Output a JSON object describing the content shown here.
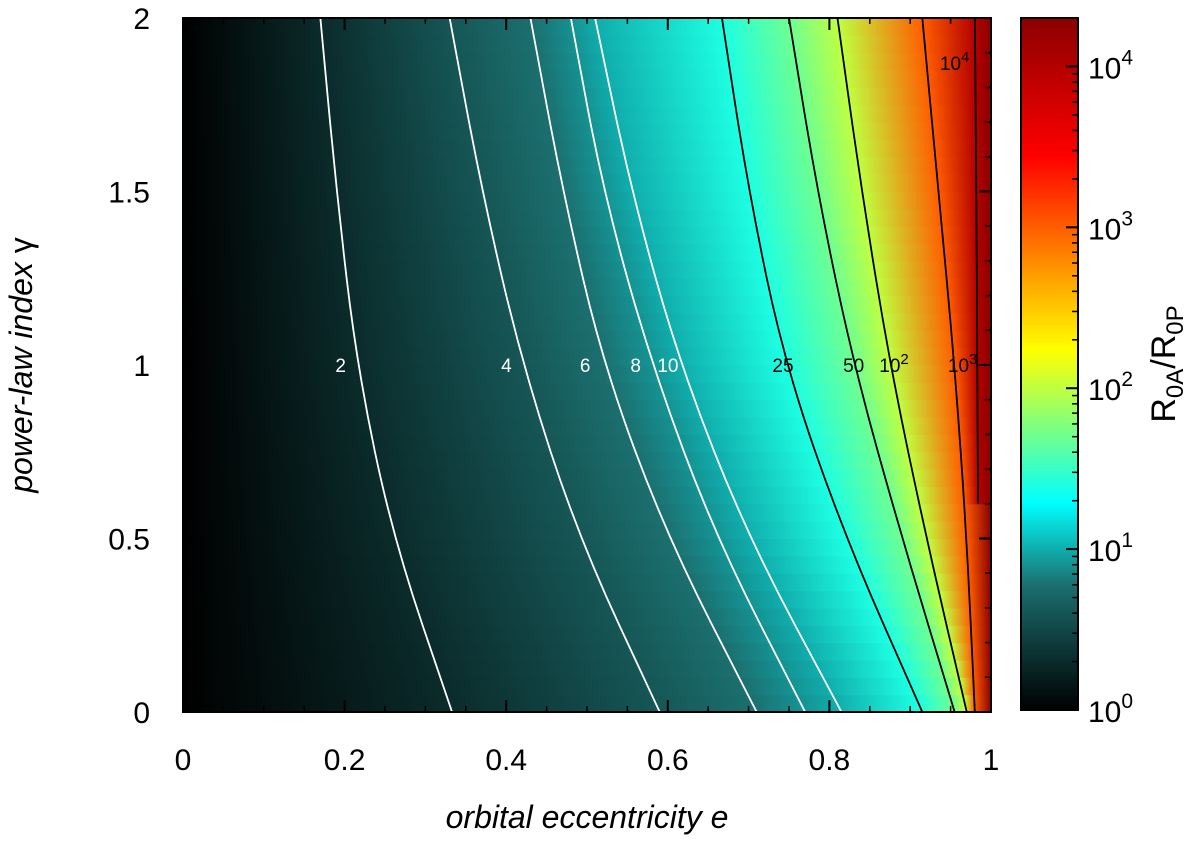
{
  "chart_data": {
    "type": "heatmap",
    "xlabel": "orbital eccentricity e",
    "ylabel": "power-law index γ",
    "xlim": [
      0,
      1
    ],
    "ylim": [
      0,
      2
    ],
    "x_ticks": [
      "0",
      "0.2",
      "0.4",
      "0.6",
      "0.8",
      "1"
    ],
    "y_ticks": [
      "0",
      "0.5",
      "1",
      "1.5",
      "2"
    ],
    "colorbar": {
      "label": "R0A/R0P",
      "scale": "log",
      "range": [
        1,
        20000
      ],
      "ticks": [
        {
          "base": "10",
          "exp": "0"
        },
        {
          "base": "10",
          "exp": "1"
        },
        {
          "base": "10",
          "exp": "2"
        },
        {
          "base": "10",
          "exp": "3"
        },
        {
          "base": "10",
          "exp": "4"
        }
      ],
      "colormap": [
        "#000000",
        "#1c6e6e",
        "#00ffff",
        "#ffff00",
        "#ff0000",
        "#8b0000"
      ]
    },
    "contours": [
      {
        "value": 2,
        "label": "2",
        "color": "#ffffff",
        "points": [
          [
            0.17,
            2.0
          ],
          [
            0.19,
            1.5
          ],
          [
            0.215,
            1.0
          ],
          [
            0.26,
            0.5
          ],
          [
            0.333,
            0.0
          ]
        ]
      },
      {
        "value": 4,
        "label": "4",
        "color": "#ffffff",
        "points": [
          [
            0.33,
            2.0
          ],
          [
            0.37,
            1.5
          ],
          [
            0.42,
            1.0
          ],
          [
            0.49,
            0.5
          ],
          [
            0.59,
            0.0
          ]
        ]
      },
      {
        "value": 6,
        "label": "6",
        "color": "#ffffff",
        "points": [
          [
            0.43,
            2.0
          ],
          [
            0.47,
            1.5
          ],
          [
            0.52,
            1.0
          ],
          [
            0.6,
            0.5
          ],
          [
            0.71,
            0.0
          ]
        ]
      },
      {
        "value": 8,
        "label": "8",
        "color": "#ffffff",
        "points": [
          [
            0.48,
            2.0
          ],
          [
            0.52,
            1.5
          ],
          [
            0.58,
            1.0
          ],
          [
            0.66,
            0.5
          ],
          [
            0.77,
            0.0
          ]
        ]
      },
      {
        "value": 10,
        "label": "10",
        "color": "#ffffff",
        "points": [
          [
            0.51,
            2.0
          ],
          [
            0.555,
            1.5
          ],
          [
            0.615,
            1.0
          ],
          [
            0.7,
            0.5
          ],
          [
            0.815,
            0.0
          ]
        ]
      },
      {
        "value": 25,
        "label": "25",
        "color": "#000000",
        "points": [
          [
            0.667,
            2.0
          ],
          [
            0.7,
            1.5
          ],
          [
            0.745,
            1.0
          ],
          [
            0.82,
            0.5
          ],
          [
            0.915,
            0.0
          ]
        ]
      },
      {
        "value": 50,
        "label": "50",
        "color": "#000000",
        "points": [
          [
            0.75,
            2.0
          ],
          [
            0.785,
            1.5
          ],
          [
            0.83,
            1.0
          ],
          [
            0.89,
            0.5
          ],
          [
            0.955,
            0.0
          ]
        ]
      },
      {
        "value": 100,
        "label": "10",
        "label_exp": "2",
        "color": "#000000",
        "points": [
          [
            0.81,
            2.0
          ],
          [
            0.84,
            1.5
          ],
          [
            0.875,
            1.0
          ],
          [
            0.92,
            0.5
          ],
          [
            0.97,
            0.0
          ]
        ]
      },
      {
        "value": 1000,
        "label": "10",
        "label_exp": "3",
        "color": "#000000",
        "points": [
          [
            0.915,
            2.0
          ],
          [
            0.935,
            1.5
          ],
          [
            0.955,
            1.0
          ],
          [
            0.97,
            0.5
          ],
          [
            0.98,
            0.0
          ]
        ]
      },
      {
        "value": 10000,
        "label": "10",
        "label_exp": "4",
        "color": "#000000",
        "points": [
          [
            0.98,
            2.0
          ],
          [
            0.982,
            1.5
          ],
          [
            0.983,
            1.0
          ],
          [
            0.984,
            0.6
          ]
        ]
      }
    ],
    "contour_labels_at_y": 1.0,
    "grid": false,
    "legend": "none"
  }
}
